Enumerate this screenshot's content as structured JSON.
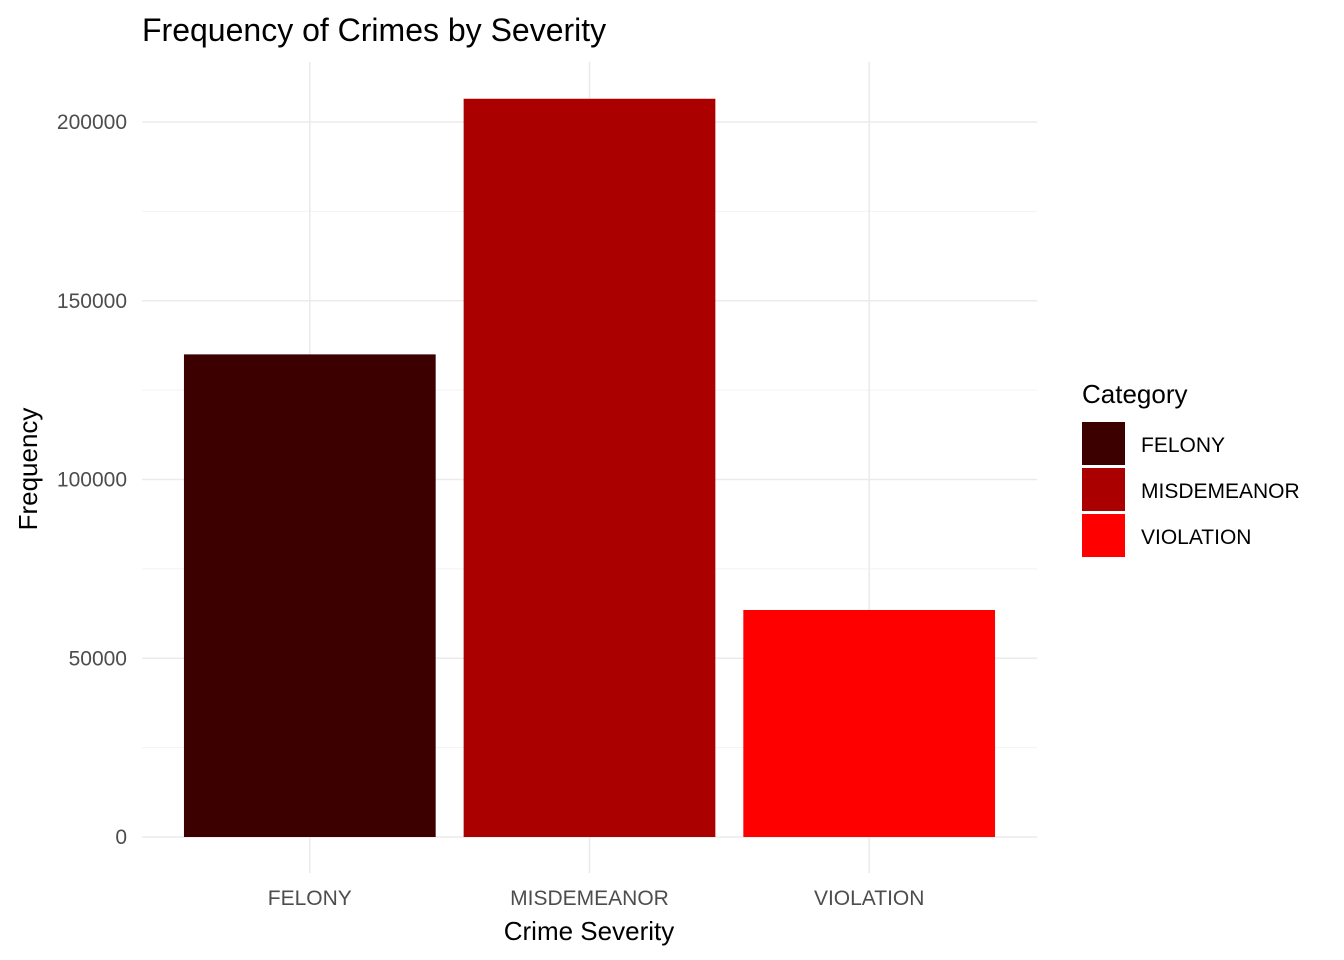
{
  "chart_data": {
    "type": "bar",
    "title": "Frequency of Crimes by Severity",
    "xlabel": "Crime Severity",
    "ylabel": "Frequency",
    "categories": [
      "FELONY",
      "MISDEMEANOR",
      "VIOLATION"
    ],
    "values": [
      135000,
      206500,
      63500
    ],
    "colors": [
      "#3d0000",
      "#aa0000",
      "#ff0000"
    ],
    "ylim": [
      0,
      206500
    ],
    "yticks": [
      0,
      50000,
      100000,
      150000,
      200000
    ],
    "ytick_labels": [
      "0",
      "50000",
      "100000",
      "150000",
      "200000"
    ],
    "grid": true,
    "legend": {
      "title": "Category",
      "placement": "right",
      "entries": [
        "FELONY",
        "MISDEMEANOR",
        "VIOLATION"
      ]
    }
  }
}
